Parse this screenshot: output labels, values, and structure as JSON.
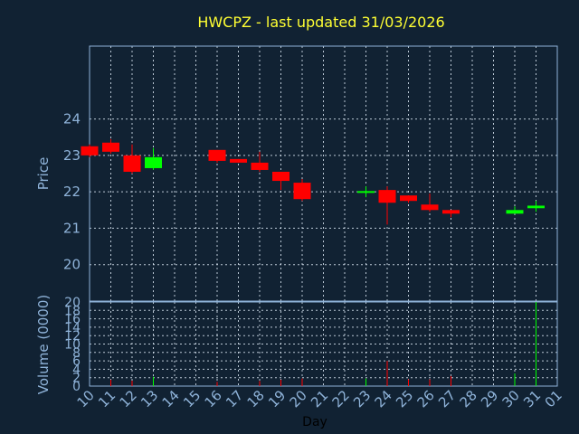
{
  "chart_data": [
    {
      "type": "candlestick",
      "title": "HWCPZ - last updated 31/03/2026",
      "ylabel": "Price",
      "ylim": [
        19,
        26
      ],
      "yticks": [
        20,
        21,
        22,
        23,
        24
      ],
      "colors": {
        "up": "#00ff00",
        "down": "#ff0000",
        "background": "#112233",
        "title": "#ffff33",
        "axis_text": "#8fb3d9"
      },
      "candles": [
        {
          "day": "10",
          "open": 23.25,
          "high": 23.3,
          "low": 22.95,
          "close": 23.0
        },
        {
          "day": "11",
          "open": 23.35,
          "high": 23.45,
          "low": 23.05,
          "close": 23.1
        },
        {
          "day": "12",
          "open": 23.0,
          "high": 23.3,
          "low": 22.5,
          "close": 22.55
        },
        {
          "day": "13",
          "open": 22.65,
          "high": 23.2,
          "low": 22.6,
          "close": 22.95
        },
        {
          "day": "16",
          "open": 23.15,
          "high": 23.15,
          "low": 22.8,
          "close": 22.85
        },
        {
          "day": "17",
          "open": 22.9,
          "high": 22.9,
          "low": 22.8,
          "close": 22.8
        },
        {
          "day": "18",
          "open": 22.8,
          "high": 23.1,
          "low": 22.55,
          "close": 22.6
        },
        {
          "day": "19",
          "open": 22.55,
          "high": 22.55,
          "low": 22.05,
          "close": 22.3
        },
        {
          "day": "20",
          "open": 22.25,
          "high": 22.35,
          "low": 21.75,
          "close": 21.8
        },
        {
          "day": "23",
          "open": 21.98,
          "high": 22.15,
          "low": 21.85,
          "close": 22.02
        },
        {
          "day": "24",
          "open": 22.05,
          "high": 22.15,
          "low": 21.1,
          "close": 21.7
        },
        {
          "day": "25",
          "open": 21.9,
          "high": 21.9,
          "low": 21.7,
          "close": 21.75
        },
        {
          "day": "26",
          "open": 21.65,
          "high": 21.95,
          "low": 21.45,
          "close": 21.5
        },
        {
          "day": "27",
          "open": 21.5,
          "high": 21.5,
          "low": 21.3,
          "close": 21.4
        },
        {
          "day": "30",
          "open": 21.4,
          "high": 21.6,
          "low": 21.4,
          "close": 21.5
        },
        {
          "day": "31",
          "open": 21.55,
          "high": 21.75,
          "low": 21.45,
          "close": 21.62
        }
      ]
    },
    {
      "type": "bar",
      "ylabel": "Volume (0000)",
      "xlabel": "Day",
      "ylim": [
        0,
        20
      ],
      "yticks": [
        0,
        2,
        4,
        6,
        8,
        10,
        12,
        14,
        16,
        18,
        20
      ],
      "categories": [
        "10",
        "11",
        "12",
        "13",
        "14",
        "15",
        "16",
        "17",
        "18",
        "19",
        "20",
        "21",
        "22",
        "23",
        "24",
        "25",
        "26",
        "27",
        "28",
        "29",
        "30",
        "31",
        "01"
      ],
      "values": [
        {
          "day": "11",
          "volume": 1.5,
          "direction": "down"
        },
        {
          "day": "12",
          "volume": 1.3,
          "direction": "down"
        },
        {
          "day": "13",
          "volume": 2.2,
          "direction": "up"
        },
        {
          "day": "16",
          "volume": 1.0,
          "direction": "down"
        },
        {
          "day": "18",
          "volume": 1.2,
          "direction": "down"
        },
        {
          "day": "19",
          "volume": 1.5,
          "direction": "down"
        },
        {
          "day": "20",
          "volume": 1.8,
          "direction": "down"
        },
        {
          "day": "23",
          "volume": 1.8,
          "direction": "up"
        },
        {
          "day": "24",
          "volume": 6.0,
          "direction": "down"
        },
        {
          "day": "25",
          "volume": 1.6,
          "direction": "down"
        },
        {
          "day": "26",
          "volume": 1.6,
          "direction": "down"
        },
        {
          "day": "27",
          "volume": 2.4,
          "direction": "down"
        },
        {
          "day": "30",
          "volume": 3.0,
          "direction": "up"
        },
        {
          "day": "31",
          "volume": 20.0,
          "direction": "up"
        }
      ]
    }
  ]
}
